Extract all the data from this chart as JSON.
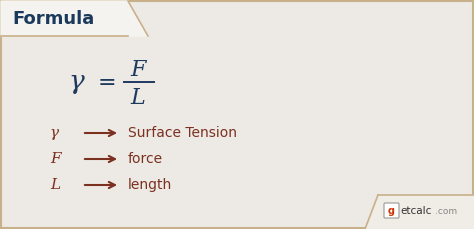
{
  "bg_color": "#edeae5",
  "header_bg": "#ffffff",
  "header_text": "Formula",
  "header_text_color": "#1a3a5c",
  "formula_color": "#1e3a5f",
  "legend_color": "#7b3020",
  "arrow_color": "#7b3020",
  "items": [
    {
      "symbol": "γ",
      "label": "Surface Tension"
    },
    {
      "symbol": "F",
      "label": "force"
    },
    {
      "symbol": "L",
      "label": "length"
    }
  ],
  "border_color": "#c8b08a",
  "header_border_color": "#c8b08a"
}
